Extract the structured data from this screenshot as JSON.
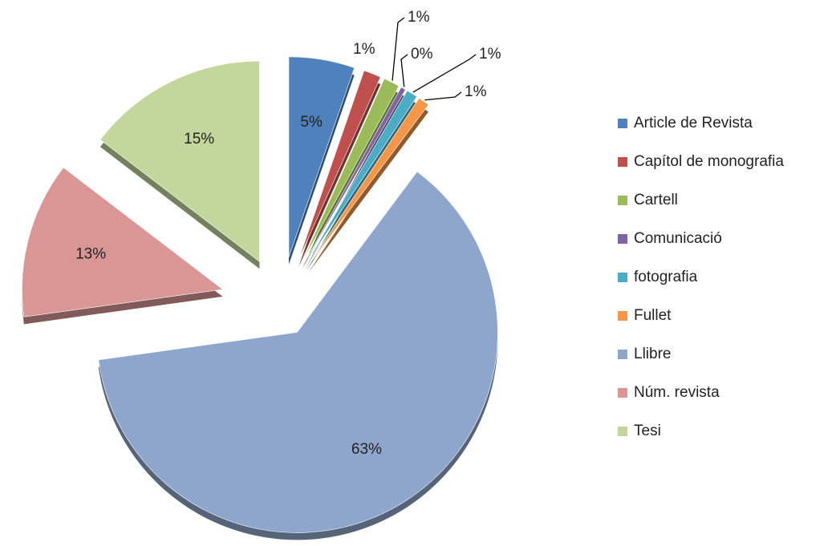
{
  "chart_data": {
    "type": "pie",
    "categories": [
      "Article de Revista",
      "Capítol de monografia",
      "Cartell",
      "Comunicació",
      "fotografia",
      "Fullet",
      "Llibre",
      "Núm. revista",
      "Tesi"
    ],
    "values": [
      5.3,
      1.4,
      1.3,
      0.4,
      0.9,
      0.9,
      62.6,
      12.6,
      14.6
    ],
    "value_labels": [
      "5%",
      "1%",
      "1%",
      "0%",
      "1%",
      "1%",
      "63%",
      "13%",
      "15%"
    ],
    "colors": [
      "#4f81bd",
      "#c0504d",
      "#9bbb59",
      "#8064a2",
      "#4bacc6",
      "#f79646",
      "#8fa6cc",
      "#d99694",
      "#c3d69b"
    ],
    "legend": "right"
  }
}
